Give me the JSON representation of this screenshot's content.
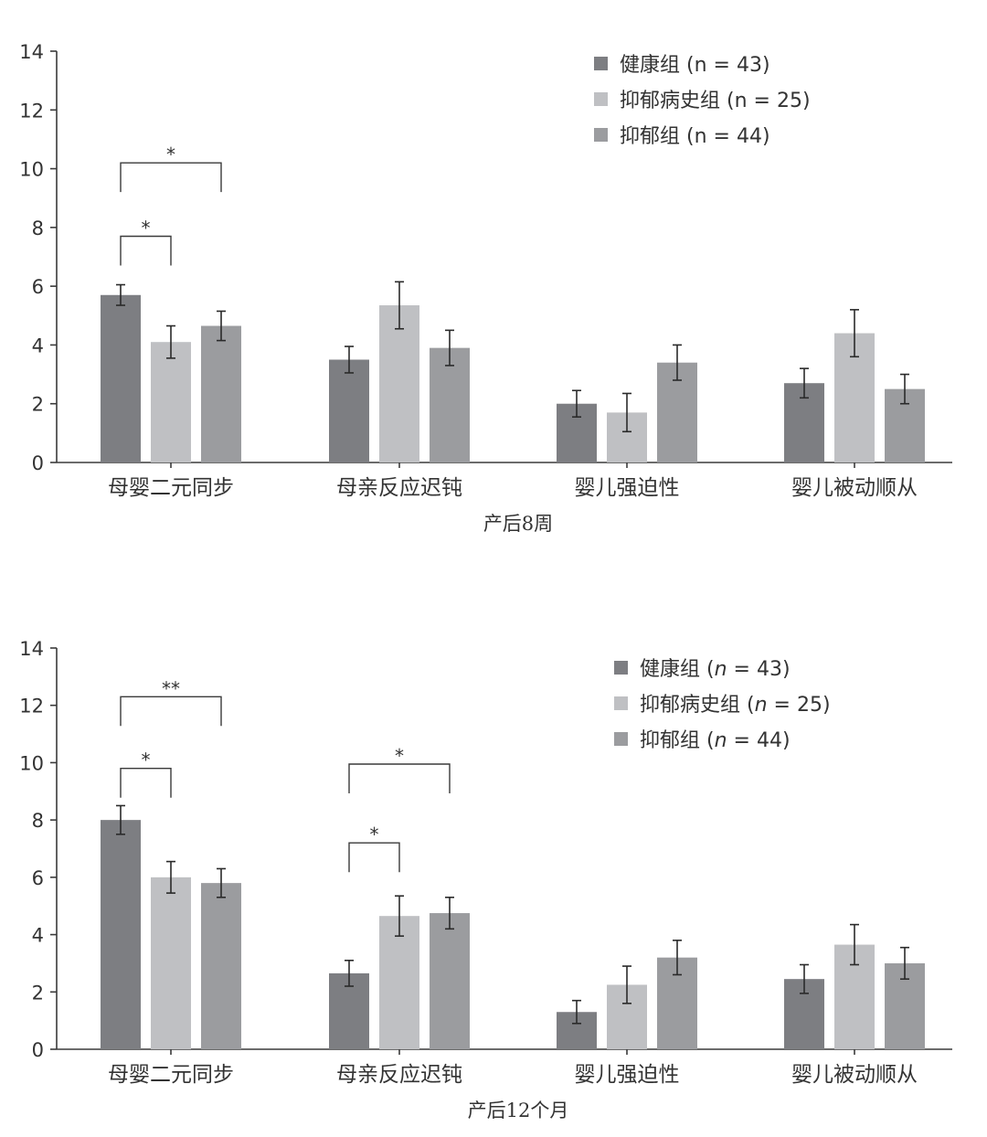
{
  "colors": {
    "healthy": "#7d7e82",
    "history": "#bfc0c3",
    "depressed": "#9b9c9f"
  },
  "chart_data": [
    {
      "id": "chart1",
      "type": "bar",
      "xlabel": "产后8周",
      "ylim": [
        0,
        14
      ],
      "yticks": [
        0,
        2,
        4,
        6,
        8,
        10,
        12,
        14
      ],
      "ytick_labels": [
        "0",
        "2",
        "4",
        "6",
        "8",
        "10",
        "12",
        "14"
      ],
      "categories": [
        "母婴二元同步",
        "母亲反应迟钝",
        "婴儿强迫性",
        "婴儿被动顺从"
      ],
      "legend_position": "top-right",
      "series": [
        {
          "key": "healthy",
          "name": "健康组 (n = 43)",
          "label_main": "健康组 (",
          "label_n": "n",
          "label_rest": " = 43)",
          "values": [
            5.7,
            3.5,
            2.0,
            2.7
          ],
          "errors": [
            0.35,
            0.45,
            0.45,
            0.5
          ]
        },
        {
          "key": "history",
          "name": "抑郁病史组 (n = 25)",
          "label_main": "抑郁病史组 (",
          "label_n": "n",
          "label_rest": " = 25)",
          "values": [
            4.1,
            5.35,
            1.7,
            4.4
          ],
          "errors": [
            0.55,
            0.8,
            0.65,
            0.8
          ]
        },
        {
          "key": "depressed",
          "name": "抑郁组 (n = 44)",
          "label_main": "抑郁组 (",
          "label_n": "n",
          "label_rest": " = 44)",
          "values": [
            4.65,
            3.9,
            3.4,
            2.5
          ],
          "errors": [
            0.5,
            0.6,
            0.6,
            0.5
          ]
        }
      ],
      "significance": [
        {
          "category": 0,
          "from": 0,
          "to": 1,
          "y": 7.7,
          "label": "*"
        },
        {
          "category": 0,
          "from": 0,
          "to": 2,
          "y": 10.2,
          "label": "*"
        }
      ]
    },
    {
      "id": "chart2",
      "type": "bar",
      "xlabel": "产后12个月",
      "ylim": [
        0,
        14
      ],
      "yticks": [
        0,
        2,
        4,
        6,
        8,
        10,
        12,
        14
      ],
      "ytick_labels": [
        "0",
        "2",
        "4",
        "6",
        "8",
        "10",
        "12",
        "14"
      ],
      "categories": [
        "母婴二元同步",
        "母亲反应迟钝",
        "婴儿强迫性",
        "婴儿被动顺从"
      ],
      "legend_position": "top-right",
      "legend_italic_n": true,
      "series": [
        {
          "key": "healthy",
          "name": "健康组 (n = 43)",
          "label_main": "健康组 (",
          "label_n": "n",
          "label_rest": " = 43)",
          "values": [
            8.0,
            2.65,
            1.3,
            2.45
          ],
          "errors": [
            0.5,
            0.45,
            0.4,
            0.5
          ]
        },
        {
          "key": "history",
          "name": "抑郁病史组 (n = 25)",
          "label_main": "抑郁病史组 (",
          "label_n": "n",
          "label_rest": " = 25)",
          "values": [
            6.0,
            4.65,
            2.25,
            3.65
          ],
          "errors": [
            0.55,
            0.7,
            0.65,
            0.7
          ]
        },
        {
          "key": "depressed",
          "name": "抑郁组 (n = 44)",
          "label_main": "抑郁组 (",
          "label_n": "n",
          "label_rest": " = 44)",
          "values": [
            5.8,
            4.75,
            3.2,
            3.0
          ],
          "errors": [
            0.5,
            0.55,
            0.6,
            0.55
          ]
        }
      ],
      "significance": [
        {
          "category": 0,
          "from": 0,
          "to": 1,
          "y": 9.8,
          "label": "*"
        },
        {
          "category": 0,
          "from": 0,
          "to": 2,
          "y": 12.3,
          "label": "**"
        },
        {
          "category": 1,
          "from": 0,
          "to": 1,
          "y": 7.2,
          "label": "*"
        },
        {
          "category": 1,
          "from": 0,
          "to": 2,
          "y": 9.95,
          "label": "*"
        }
      ]
    }
  ]
}
